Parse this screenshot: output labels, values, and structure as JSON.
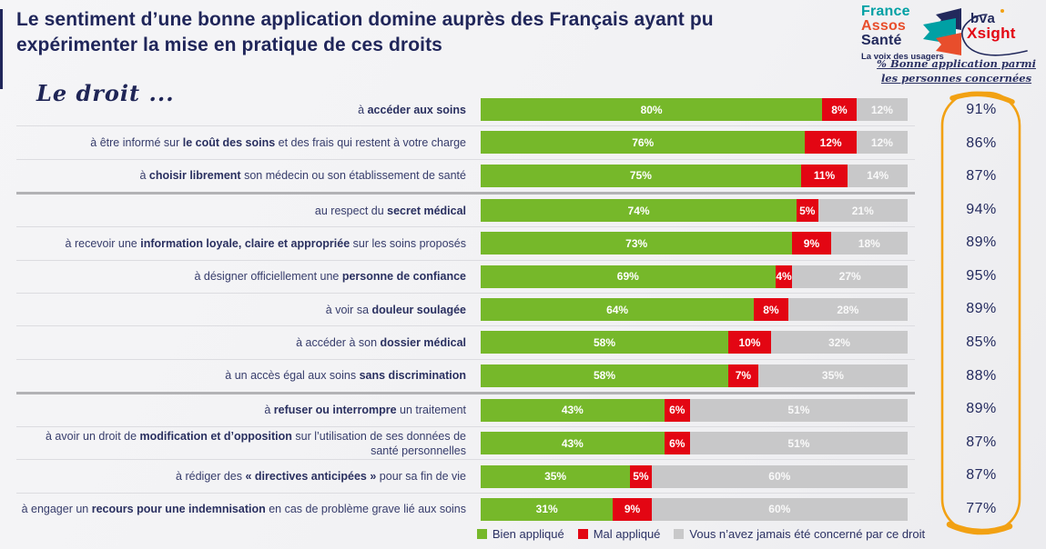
{
  "header": {
    "title": "Le sentiment d’une bonne application domine auprès des Français ayant pu expérimenter la mise en pratique de ces droits"
  },
  "logos": {
    "fas_line1": "France",
    "fas_line2": "Assos",
    "fas_line3": "Santé",
    "fas_tagline": "La voix des usagers",
    "bva_top": "bva",
    "bva_bottom": "Xsight"
  },
  "annotation": {
    "line1": "% Bonne application parmi",
    "line2": "les personnes concernées"
  },
  "row_axis_title": "Le droit  ...",
  "colors": {
    "green": "#76B82A",
    "red": "#E30613",
    "gray": "#C8C8C9",
    "navy": "#20265A",
    "orange": "#F2A113",
    "teal": "#00A0A4",
    "logo_red": "#E84E2C"
  },
  "chart_data": {
    "type": "bar",
    "orientation": "horizontal",
    "stacked": true,
    "unit": "%",
    "xlim": [
      0,
      100
    ],
    "grid": false,
    "legend_position": "bottom",
    "series_names": [
      "Bien appliqué",
      "Mal appliqué",
      "Vous n’avez jamais été concerné par ce droit"
    ],
    "right_column_title": "% Bonne application parmi les personnes concernées",
    "rows": [
      {
        "label": [
          {
            "t": "à "
          },
          {
            "t": "accéder aux soins",
            "b": true
          }
        ],
        "values": [
          80,
          8,
          12
        ],
        "right": "91%"
      },
      {
        "label": [
          {
            "t": "à être informé sur "
          },
          {
            "t": "le coût des soins",
            "b": true
          },
          {
            "t": " et des frais qui restent à votre charge"
          }
        ],
        "values": [
          76,
          12,
          12
        ],
        "right": "86%"
      },
      {
        "label": [
          {
            "t": "à "
          },
          {
            "t": "choisir librement",
            "b": true
          },
          {
            "t": " son médecin ou son établissement de santé"
          }
        ],
        "values": [
          75,
          11,
          14
        ],
        "right": "87%",
        "group_end": true
      },
      {
        "label": [
          {
            "t": "au respect du "
          },
          {
            "t": "secret médical",
            "b": true
          }
        ],
        "values": [
          74,
          5,
          21
        ],
        "right": "94%"
      },
      {
        "label": [
          {
            "t": "à recevoir une "
          },
          {
            "t": "information loyale, claire et appropriée",
            "b": true
          },
          {
            "t": " sur les soins proposés"
          }
        ],
        "values": [
          73,
          9,
          18
        ],
        "right": "89%"
      },
      {
        "label": [
          {
            "t": "à désigner officiellement une "
          },
          {
            "t": "personne de confiance",
            "b": true
          }
        ],
        "values": [
          69,
          4,
          27
        ],
        "right": "95%"
      },
      {
        "label": [
          {
            "t": "à voir sa "
          },
          {
            "t": "douleur soulagée",
            "b": true
          }
        ],
        "values": [
          64,
          8,
          28
        ],
        "right": "89%"
      },
      {
        "label": [
          {
            "t": "à accéder à son "
          },
          {
            "t": "dossier médical",
            "b": true
          }
        ],
        "values": [
          58,
          10,
          32
        ],
        "right": "85%"
      },
      {
        "label": [
          {
            "t": "à un accès égal aux soins "
          },
          {
            "t": "sans discrimination",
            "b": true
          }
        ],
        "values": [
          58,
          7,
          35
        ],
        "right": "88%",
        "group_end": true
      },
      {
        "label": [
          {
            "t": "à "
          },
          {
            "t": "refuser ou interrompre",
            "b": true
          },
          {
            "t": " un traitement"
          }
        ],
        "values": [
          43,
          6,
          51
        ],
        "right": "89%"
      },
      {
        "label": [
          {
            "t": "à avoir un droit de "
          },
          {
            "t": "modification et d’opposition",
            "b": true
          },
          {
            "t": " sur l’utilisation de ses données de santé personnelles"
          }
        ],
        "values": [
          43,
          6,
          51
        ],
        "right": "87%"
      },
      {
        "label": [
          {
            "t": "à rédiger des "
          },
          {
            "t": "« directives anticipées »",
            "b": true
          },
          {
            "t": " pour sa fin de vie"
          }
        ],
        "values": [
          35,
          5,
          60
        ],
        "right": "87%"
      },
      {
        "label": [
          {
            "t": "à engager un "
          },
          {
            "t": "recours pour une indemnisation",
            "b": true
          },
          {
            "t": " en cas de problème grave lié aux soins"
          }
        ],
        "values": [
          31,
          9,
          60
        ],
        "right": "77%"
      }
    ]
  }
}
